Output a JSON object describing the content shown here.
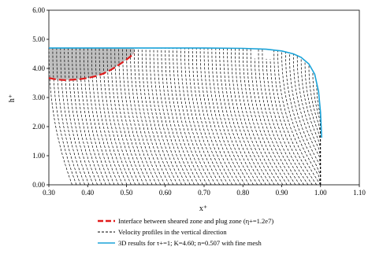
{
  "chart_data": {
    "type": "line",
    "title": "",
    "xlabel": "x⁺",
    "ylabel": "h⁺",
    "xlim": [
      0.3,
      1.1
    ],
    "ylim": [
      0.0,
      6.0
    ],
    "xticks": [
      "0.30",
      "0.40",
      "0.50",
      "0.60",
      "0.70",
      "0.80",
      "0.90",
      "1.00",
      "1.10"
    ],
    "yticks": [
      "0.00",
      "1.00",
      "2.00",
      "3.00",
      "4.00",
      "5.00",
      "6.00"
    ],
    "grid": false,
    "legend": {
      "placement": "bottom",
      "entries": [
        {
          "label": "Interface between sheared zone and plug zone (η+=1.2e7)",
          "color": "#e11b1b",
          "style": "dash-thick"
        },
        {
          "label": "Velocity profiles in the vertical direction",
          "color": "#000000",
          "style": "dash"
        },
        {
          "label": "3D results for τ+=1; K=4.60; n=0.507 with fine mesh",
          "color": "#1aa3d9",
          "style": "solid"
        }
      ]
    },
    "series": [
      {
        "name": "Interface between sheared zone and plug zone (η+=1.2e7)",
        "color": "#e11b1b",
        "x": [
          0.3,
          0.32,
          0.34,
          0.36,
          0.38,
          0.4,
          0.42,
          0.44,
          0.46,
          0.48,
          0.5,
          0.52
        ],
        "y": [
          3.67,
          3.62,
          3.6,
          3.61,
          3.63,
          3.67,
          3.73,
          3.82,
          3.95,
          4.12,
          4.3,
          4.52
        ]
      },
      {
        "name": "3D results for τ+=1; K=4.60; n=0.507 with fine mesh",
        "color": "#1aa3d9",
        "x": [
          0.3,
          0.5,
          0.7,
          0.8,
          0.86,
          0.9,
          0.93,
          0.95,
          0.97,
          0.985,
          0.995,
          1.0,
          1.003
        ],
        "y": [
          4.7,
          4.7,
          4.7,
          4.69,
          4.66,
          4.6,
          4.5,
          4.38,
          4.15,
          3.8,
          3.2,
          2.5,
          1.62
        ]
      }
    ],
    "velocity_profiles": {
      "color": "#000000",
      "x_positions": [
        0.3,
        0.31,
        0.32,
        0.33,
        0.34,
        0.35,
        0.36,
        0.37,
        0.38,
        0.39,
        0.4,
        0.41,
        0.42,
        0.43,
        0.44,
        0.45,
        0.46,
        0.47,
        0.48,
        0.49,
        0.5,
        0.51,
        0.52,
        0.53,
        0.54,
        0.55,
        0.56,
        0.57,
        0.58,
        0.59,
        0.6,
        0.61,
        0.62,
        0.63,
        0.64,
        0.65,
        0.66,
        0.67,
        0.68,
        0.69,
        0.7,
        0.71,
        0.72,
        0.73,
        0.74,
        0.75,
        0.76,
        0.77,
        0.78,
        0.79,
        0.8,
        0.81,
        0.82,
        0.83,
        0.84,
        0.85,
        0.86,
        0.87,
        0.88,
        0.89,
        0.9,
        0.91,
        0.92,
        0.93,
        0.94,
        0.95,
        0.96,
        0.97,
        0.98,
        0.99
      ],
      "top_height": 4.7,
      "horizontal_shift_at_base": 0.12
    },
    "plug_zone_fill": "#c0c0c0"
  }
}
